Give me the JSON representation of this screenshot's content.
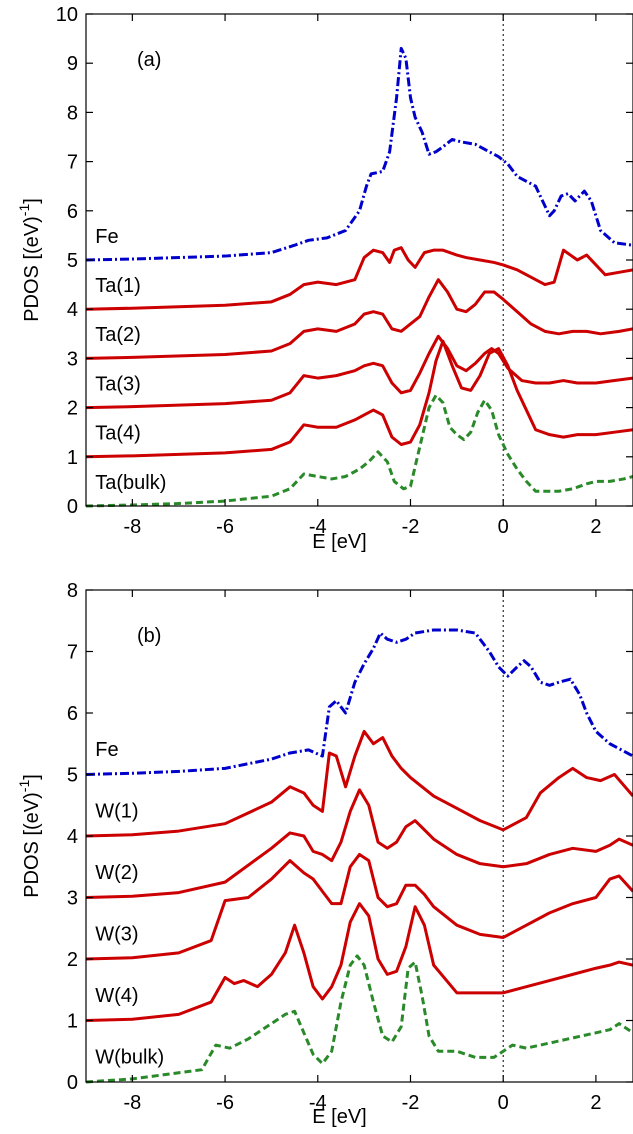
{
  "chart_data": [
    {
      "type": "line",
      "panel_label": "(a)",
      "xlabel": "E [eV]",
      "ylabel": "PDOS [(eV)",
      "ylabel_sup": "-1",
      "ylabel_suffix": "]",
      "xlim": [
        -9,
        2.8
      ],
      "ylim": [
        0,
        10
      ],
      "xticks": [
        -8,
        -6,
        -4,
        -2,
        0,
        2
      ],
      "yticks": [
        0,
        1,
        2,
        3,
        4,
        5,
        6,
        7,
        8,
        9,
        10
      ],
      "fermi_level": 0,
      "series": [
        {
          "name": "Fe",
          "color": "#0000cc",
          "style": "dash-dot",
          "label_x": -8.8,
          "label_y": 5.35,
          "x": [
            -9,
            -8,
            -6,
            -5,
            -4.5,
            -4.2,
            -3.8,
            -3.4,
            -3.1,
            -2.95,
            -2.85,
            -2.6,
            -2.45,
            -2.3,
            -2.2,
            -2.1,
            -2.0,
            -1.9,
            -1.75,
            -1.6,
            -1.45,
            -1.3,
            -1.1,
            -0.9,
            -0.6,
            -0.3,
            -0.1,
            0.1,
            0.3,
            0.5,
            0.7,
            0.9,
            1.0,
            1.1,
            1.25,
            1.4,
            1.55,
            1.75,
            1.9,
            2.1,
            2.4,
            2.8
          ],
          "y": [
            5.0,
            5.02,
            5.08,
            5.15,
            5.3,
            5.4,
            5.45,
            5.6,
            6.0,
            6.5,
            6.75,
            6.8,
            7.2,
            8.3,
            9.3,
            9.1,
            8.3,
            7.9,
            7.6,
            7.15,
            7.2,
            7.3,
            7.45,
            7.4,
            7.35,
            7.2,
            7.1,
            6.95,
            6.7,
            6.6,
            6.5,
            6.1,
            5.9,
            6.0,
            6.3,
            6.35,
            6.2,
            6.4,
            6.2,
            5.6,
            5.35,
            5.3
          ]
        },
        {
          "name": "Ta(1)",
          "color": "#cc0000",
          "style": "solid",
          "label_x": -8.8,
          "label_y": 4.35,
          "x": [
            -9,
            -8,
            -6,
            -5,
            -4.6,
            -4.3,
            -4.0,
            -3.6,
            -3.2,
            -3.0,
            -2.8,
            -2.6,
            -2.45,
            -2.35,
            -2.2,
            -2.05,
            -1.9,
            -1.7,
            -1.5,
            -1.3,
            -1.0,
            -0.8,
            -0.5,
            -0.2,
            0.0,
            0.3,
            0.6,
            0.9,
            1.1,
            1.3,
            1.45,
            1.6,
            1.8,
            1.95,
            2.2,
            2.5,
            2.8
          ],
          "y": [
            4.0,
            4.02,
            4.08,
            4.15,
            4.3,
            4.5,
            4.55,
            4.5,
            4.6,
            5.05,
            5.2,
            5.15,
            4.95,
            5.2,
            5.25,
            5.0,
            4.85,
            5.15,
            5.2,
            5.2,
            5.1,
            5.05,
            5.0,
            4.95,
            4.9,
            4.8,
            4.65,
            4.5,
            4.55,
            5.2,
            5.1,
            5.0,
            5.1,
            4.95,
            4.7,
            4.75,
            4.8
          ]
        },
        {
          "name": "Ta(2)",
          "color": "#cc0000",
          "style": "solid",
          "label_x": -8.8,
          "label_y": 3.35,
          "x": [
            -9,
            -8,
            -6,
            -5,
            -4.6,
            -4.3,
            -4.0,
            -3.6,
            -3.2,
            -3.0,
            -2.8,
            -2.6,
            -2.4,
            -2.2,
            -2.0,
            -1.8,
            -1.6,
            -1.4,
            -1.2,
            -1.0,
            -0.8,
            -0.6,
            -0.4,
            -0.2,
            0.0,
            0.3,
            0.6,
            0.9,
            1.2,
            1.5,
            1.8,
            2.1,
            2.5,
            2.8
          ],
          "y": [
            3.0,
            3.02,
            3.08,
            3.15,
            3.3,
            3.55,
            3.6,
            3.55,
            3.7,
            3.9,
            3.95,
            3.9,
            3.6,
            3.55,
            3.7,
            3.85,
            4.25,
            4.6,
            4.35,
            4.0,
            3.95,
            4.1,
            4.35,
            4.35,
            4.2,
            3.95,
            3.7,
            3.55,
            3.5,
            3.55,
            3.55,
            3.5,
            3.55,
            3.6
          ]
        },
        {
          "name": "Ta(3)",
          "color": "#cc0000",
          "style": "solid",
          "label_x": -8.8,
          "label_y": 2.35,
          "x": [
            -9,
            -8,
            -6,
            -5,
            -4.6,
            -4.3,
            -4.0,
            -3.6,
            -3.2,
            -3.0,
            -2.8,
            -2.6,
            -2.4,
            -2.2,
            -2.0,
            -1.8,
            -1.6,
            -1.4,
            -1.2,
            -1.0,
            -0.8,
            -0.6,
            -0.4,
            -0.25,
            -0.1,
            0.1,
            0.4,
            0.7,
            1.0,
            1.3,
            1.6,
            2.0,
            2.4,
            2.8
          ],
          "y": [
            2.0,
            2.02,
            2.08,
            2.15,
            2.3,
            2.65,
            2.6,
            2.65,
            2.75,
            2.85,
            2.9,
            2.85,
            2.5,
            2.3,
            2.35,
            2.7,
            3.1,
            3.45,
            3.2,
            2.85,
            2.75,
            2.9,
            3.1,
            3.2,
            3.1,
            2.8,
            2.55,
            2.5,
            2.5,
            2.55,
            2.5,
            2.5,
            2.55,
            2.6
          ]
        },
        {
          "name": "Ta(4)",
          "color": "#cc0000",
          "style": "solid",
          "label_x": -8.8,
          "label_y": 1.35,
          "x": [
            -9,
            -8,
            -6,
            -5,
            -4.6,
            -4.3,
            -4.0,
            -3.6,
            -3.2,
            -3.0,
            -2.8,
            -2.6,
            -2.4,
            -2.2,
            -2.0,
            -1.8,
            -1.6,
            -1.45,
            -1.3,
            -1.1,
            -0.9,
            -0.7,
            -0.5,
            -0.3,
            -0.1,
            0.1,
            0.3,
            0.5,
            0.7,
            1.0,
            1.3,
            1.6,
            2.0,
            2.4,
            2.8
          ],
          "y": [
            1.0,
            1.02,
            1.08,
            1.15,
            1.3,
            1.65,
            1.6,
            1.6,
            1.75,
            1.85,
            1.95,
            1.85,
            1.4,
            1.25,
            1.3,
            1.65,
            2.3,
            2.95,
            3.35,
            2.85,
            2.4,
            2.35,
            2.65,
            3.1,
            3.2,
            2.85,
            2.35,
            1.95,
            1.55,
            1.45,
            1.4,
            1.45,
            1.45,
            1.5,
            1.55
          ]
        },
        {
          "name": "Ta(bulk)",
          "color": "#2a8a2a",
          "style": "dashed",
          "label_x": -8.8,
          "label_y": 0.35,
          "x": [
            -9,
            -8,
            -7,
            -6,
            -5,
            -4.6,
            -4.3,
            -4.0,
            -3.7,
            -3.4,
            -3.1,
            -2.9,
            -2.7,
            -2.5,
            -2.35,
            -2.15,
            -2.0,
            -1.8,
            -1.6,
            -1.45,
            -1.3,
            -1.15,
            -1.0,
            -0.85,
            -0.7,
            -0.55,
            -0.4,
            -0.25,
            -0.1,
            0.1,
            0.3,
            0.5,
            0.7,
            0.9,
            1.2,
            1.5,
            1.8,
            2.0,
            2.3,
            2.6,
            2.8
          ],
          "y": [
            0.0,
            0.02,
            0.05,
            0.1,
            0.2,
            0.35,
            0.65,
            0.6,
            0.55,
            0.6,
            0.75,
            0.9,
            1.1,
            0.9,
            0.5,
            0.35,
            0.4,
            1.2,
            2.0,
            2.25,
            2.1,
            1.6,
            1.45,
            1.35,
            1.5,
            1.9,
            2.15,
            1.95,
            1.45,
            1.05,
            0.75,
            0.5,
            0.3,
            0.3,
            0.3,
            0.35,
            0.45,
            0.5,
            0.5,
            0.55,
            0.6
          ]
        }
      ]
    },
    {
      "type": "line",
      "panel_label": "(b)",
      "xlabel": "E [eV]",
      "ylabel": "PDOS [(eV)",
      "ylabel_sup": "-1",
      "ylabel_suffix": "]",
      "xlim": [
        -9,
        2.8
      ],
      "ylim": [
        0,
        8
      ],
      "xticks": [
        -8,
        -6,
        -4,
        -2,
        0,
        2
      ],
      "yticks": [
        0,
        1,
        2,
        3,
        4,
        5,
        6,
        7,
        8
      ],
      "fermi_level": 0,
      "series": [
        {
          "name": "Fe",
          "color": "#0000cc",
          "style": "dash-dot",
          "label_x": -8.8,
          "label_y": 5.3,
          "x": [
            -9,
            -8,
            -7,
            -6,
            -5,
            -4.6,
            -4.2,
            -3.9,
            -3.75,
            -3.6,
            -3.4,
            -3.2,
            -3.0,
            -2.8,
            -2.65,
            -2.5,
            -2.3,
            -2.1,
            -1.9,
            -1.5,
            -1.0,
            -0.6,
            -0.3,
            -0.1,
            0.1,
            0.3,
            0.45,
            0.6,
            0.8,
            1.0,
            1.2,
            1.45,
            1.65,
            1.8,
            2.0,
            2.3,
            2.8
          ],
          "y": [
            5.0,
            5.02,
            5.05,
            5.1,
            5.25,
            5.35,
            5.4,
            5.3,
            6.1,
            6.2,
            6.0,
            6.5,
            6.8,
            7.05,
            7.3,
            7.2,
            7.15,
            7.2,
            7.3,
            7.35,
            7.35,
            7.3,
            7.0,
            6.75,
            6.6,
            6.75,
            6.85,
            6.75,
            6.5,
            6.45,
            6.5,
            6.55,
            6.3,
            6.0,
            5.7,
            5.5,
            5.3
          ]
        },
        {
          "name": "W(1)",
          "color": "#cc0000",
          "style": "solid",
          "label_x": -8.8,
          "label_y": 4.3,
          "x": [
            -9,
            -8,
            -7,
            -6,
            -5,
            -4.6,
            -4.3,
            -4.1,
            -3.9,
            -3.75,
            -3.6,
            -3.4,
            -3.2,
            -3.0,
            -2.8,
            -2.6,
            -2.4,
            -2.2,
            -2.0,
            -1.5,
            -1.0,
            -0.5,
            0.0,
            0.5,
            0.8,
            1.2,
            1.5,
            1.8,
            2.1,
            2.4,
            2.8
          ],
          "y": [
            4.0,
            4.02,
            4.08,
            4.2,
            4.55,
            4.8,
            4.7,
            4.5,
            4.4,
            5.35,
            5.3,
            4.8,
            5.3,
            5.7,
            5.5,
            5.6,
            5.3,
            5.1,
            4.95,
            4.65,
            4.45,
            4.25,
            4.1,
            4.3,
            4.7,
            4.95,
            5.1,
            4.95,
            4.9,
            5.0,
            4.65
          ]
        },
        {
          "name": "W(2)",
          "color": "#cc0000",
          "style": "solid",
          "label_x": -8.8,
          "label_y": 3.3,
          "x": [
            -9,
            -8,
            -7,
            -6,
            -5,
            -4.6,
            -4.3,
            -4.1,
            -3.9,
            -3.7,
            -3.5,
            -3.3,
            -3.1,
            -2.9,
            -2.7,
            -2.5,
            -2.3,
            -2.1,
            -1.9,
            -1.7,
            -1.5,
            -1.0,
            -0.5,
            0.0,
            0.5,
            1.0,
            1.5,
            2.0,
            2.3,
            2.5,
            2.8
          ],
          "y": [
            3.0,
            3.02,
            3.08,
            3.25,
            3.8,
            4.05,
            4.0,
            3.75,
            3.7,
            3.6,
            3.9,
            4.4,
            4.75,
            4.5,
            3.9,
            3.8,
            3.9,
            4.15,
            4.25,
            4.1,
            3.95,
            3.7,
            3.55,
            3.5,
            3.55,
            3.7,
            3.8,
            3.75,
            3.85,
            3.95,
            3.85
          ]
        },
        {
          "name": "W(3)",
          "color": "#cc0000",
          "style": "solid",
          "label_x": -8.8,
          "label_y": 2.3,
          "x": [
            -9,
            -8,
            -7,
            -6.3,
            -6.0,
            -5.5,
            -5.0,
            -4.6,
            -4.3,
            -4.1,
            -3.9,
            -3.7,
            -3.5,
            -3.3,
            -3.1,
            -2.9,
            -2.7,
            -2.5,
            -2.3,
            -2.1,
            -1.9,
            -1.7,
            -1.5,
            -1.0,
            -0.5,
            0.0,
            0.5,
            1.0,
            1.5,
            2.0,
            2.3,
            2.5,
            2.8
          ],
          "y": [
            2.0,
            2.02,
            2.1,
            2.3,
            2.95,
            3.0,
            3.3,
            3.6,
            3.4,
            3.3,
            3.1,
            2.9,
            2.9,
            3.5,
            3.7,
            3.6,
            3.0,
            2.85,
            2.9,
            3.2,
            3.2,
            3.05,
            2.85,
            2.55,
            2.4,
            2.35,
            2.55,
            2.75,
            2.9,
            3.0,
            3.3,
            3.35,
            3.1
          ]
        },
        {
          "name": "W(4)",
          "color": "#cc0000",
          "style": "solid",
          "label_x": -8.8,
          "label_y": 1.3,
          "x": [
            -9,
            -8,
            -7,
            -6.3,
            -6.0,
            -5.8,
            -5.6,
            -5.3,
            -5.0,
            -4.7,
            -4.5,
            -4.3,
            -4.1,
            -3.9,
            -3.7,
            -3.5,
            -3.3,
            -3.1,
            -2.9,
            -2.7,
            -2.5,
            -2.3,
            -2.1,
            -1.9,
            -1.7,
            -1.5,
            -1.0,
            -0.5,
            0.0,
            0.5,
            1.0,
            1.5,
            2.0,
            2.3,
            2.5,
            2.8
          ],
          "y": [
            1.0,
            1.02,
            1.1,
            1.3,
            1.7,
            1.6,
            1.65,
            1.55,
            1.75,
            2.1,
            2.55,
            2.1,
            1.55,
            1.35,
            1.55,
            1.9,
            2.6,
            2.9,
            2.7,
            2.0,
            1.75,
            1.8,
            2.2,
            2.85,
            2.55,
            1.9,
            1.45,
            1.45,
            1.45,
            1.55,
            1.65,
            1.75,
            1.85,
            1.9,
            1.95,
            1.9
          ]
        },
        {
          "name": "W(bulk)",
          "color": "#2a8a2a",
          "style": "dashed",
          "label_x": -8.8,
          "label_y": 0.3,
          "x": [
            -9,
            -8,
            -7,
            -6.5,
            -6.2,
            -5.9,
            -5.5,
            -5.0,
            -4.7,
            -4.5,
            -4.3,
            -4.1,
            -3.9,
            -3.7,
            -3.5,
            -3.3,
            -3.15,
            -3.0,
            -2.8,
            -2.6,
            -2.4,
            -2.2,
            -2.05,
            -1.9,
            -1.75,
            -1.6,
            -1.4,
            -1.0,
            -0.6,
            -0.2,
            0.0,
            0.2,
            0.5,
            0.8,
            1.1,
            1.4,
            1.7,
            2.0,
            2.3,
            2.5,
            2.8
          ],
          "y": [
            0.0,
            0.05,
            0.15,
            0.2,
            0.6,
            0.55,
            0.7,
            0.95,
            1.1,
            1.15,
            0.8,
            0.45,
            0.3,
            0.5,
            1.3,
            1.9,
            2.05,
            1.9,
            1.3,
            0.75,
            0.65,
            0.9,
            1.85,
            1.95,
            1.4,
            0.75,
            0.5,
            0.5,
            0.4,
            0.4,
            0.5,
            0.6,
            0.55,
            0.6,
            0.65,
            0.7,
            0.75,
            0.8,
            0.85,
            0.95,
            0.8
          ]
        }
      ]
    }
  ]
}
